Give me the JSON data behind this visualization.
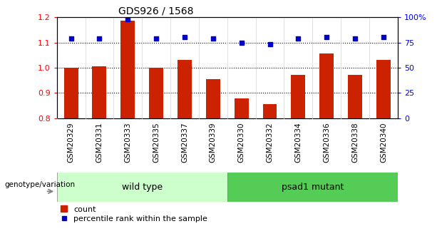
{
  "title": "GDS926 / 1568",
  "samples": [
    "GSM20329",
    "GSM20331",
    "GSM20333",
    "GSM20335",
    "GSM20337",
    "GSM20339",
    "GSM20330",
    "GSM20332",
    "GSM20334",
    "GSM20336",
    "GSM20338",
    "GSM20340"
  ],
  "count_values": [
    1.0,
    1.005,
    1.185,
    1.0,
    1.03,
    0.955,
    0.878,
    0.855,
    0.972,
    1.055,
    0.972,
    1.03
  ],
  "percentile_values": [
    79,
    79,
    98,
    79,
    80,
    79,
    75,
    73,
    79,
    80,
    79,
    80
  ],
  "wt_color": "#ccffcc",
  "psad_color": "#55cc55",
  "bar_color": "#cc2200",
  "dot_color": "#0000cc",
  "ylim_left": [
    0.8,
    1.2
  ],
  "ylim_right": [
    0,
    100
  ],
  "yticks_left": [
    0.8,
    0.9,
    1.0,
    1.1,
    1.2
  ],
  "yticks_right": [
    0,
    25,
    50,
    75,
    100
  ],
  "ytick_labels_right": [
    "0",
    "25",
    "50",
    "75",
    "100%"
  ],
  "grid_values": [
    0.9,
    1.0,
    1.1
  ],
  "baseline": 0.8,
  "dot_size": 25,
  "bar_width": 0.5
}
